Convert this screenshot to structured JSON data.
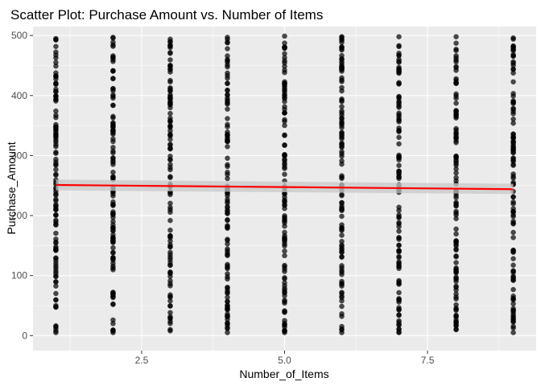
{
  "chart_data": {
    "type": "scatter",
    "title": "Scatter Plot: Purchase Amount vs. Number of Items",
    "xlabel": "Number_of_Items",
    "ylabel": "Purchase_Amount",
    "xlim": [
      0.6,
      9.4
    ],
    "ylim": [
      -25,
      515
    ],
    "xticks": [
      2.5,
      5.0,
      7.5
    ],
    "xtick_labels": [
      "2.5",
      "5.0",
      "7.5"
    ],
    "yticks": [
      0,
      100,
      200,
      300,
      400,
      500
    ],
    "ytick_labels": [
      "0",
      "100",
      "200",
      "300",
      "400",
      "500"
    ],
    "grid": true,
    "panel_background": "#ebebeb",
    "point_color": "#000000",
    "trend_color": "#ff0000",
    "ribbon_color": "#c8c8c8",
    "x_categories": [
      1,
      2,
      3,
      4,
      5,
      6,
      7,
      8,
      9
    ],
    "y_ranges": [
      {
        "x": 1,
        "min": 5,
        "max": 495
      },
      {
        "x": 2,
        "min": 5,
        "max": 497
      },
      {
        "x": 3,
        "min": 8,
        "max": 494
      },
      {
        "x": 4,
        "min": 5,
        "max": 497
      },
      {
        "x": 5,
        "min": 5,
        "max": 499
      },
      {
        "x": 6,
        "min": 5,
        "max": 498
      },
      {
        "x": 7,
        "min": 5,
        "max": 498
      },
      {
        "x": 8,
        "min": 10,
        "max": 498
      },
      {
        "x": 9,
        "min": 5,
        "max": 496
      }
    ],
    "trend": {
      "x": [
        1,
        9
      ],
      "y": [
        251,
        244
      ],
      "ci_lower": [
        242,
        236
      ],
      "ci_upper": [
        260,
        253
      ]
    }
  }
}
